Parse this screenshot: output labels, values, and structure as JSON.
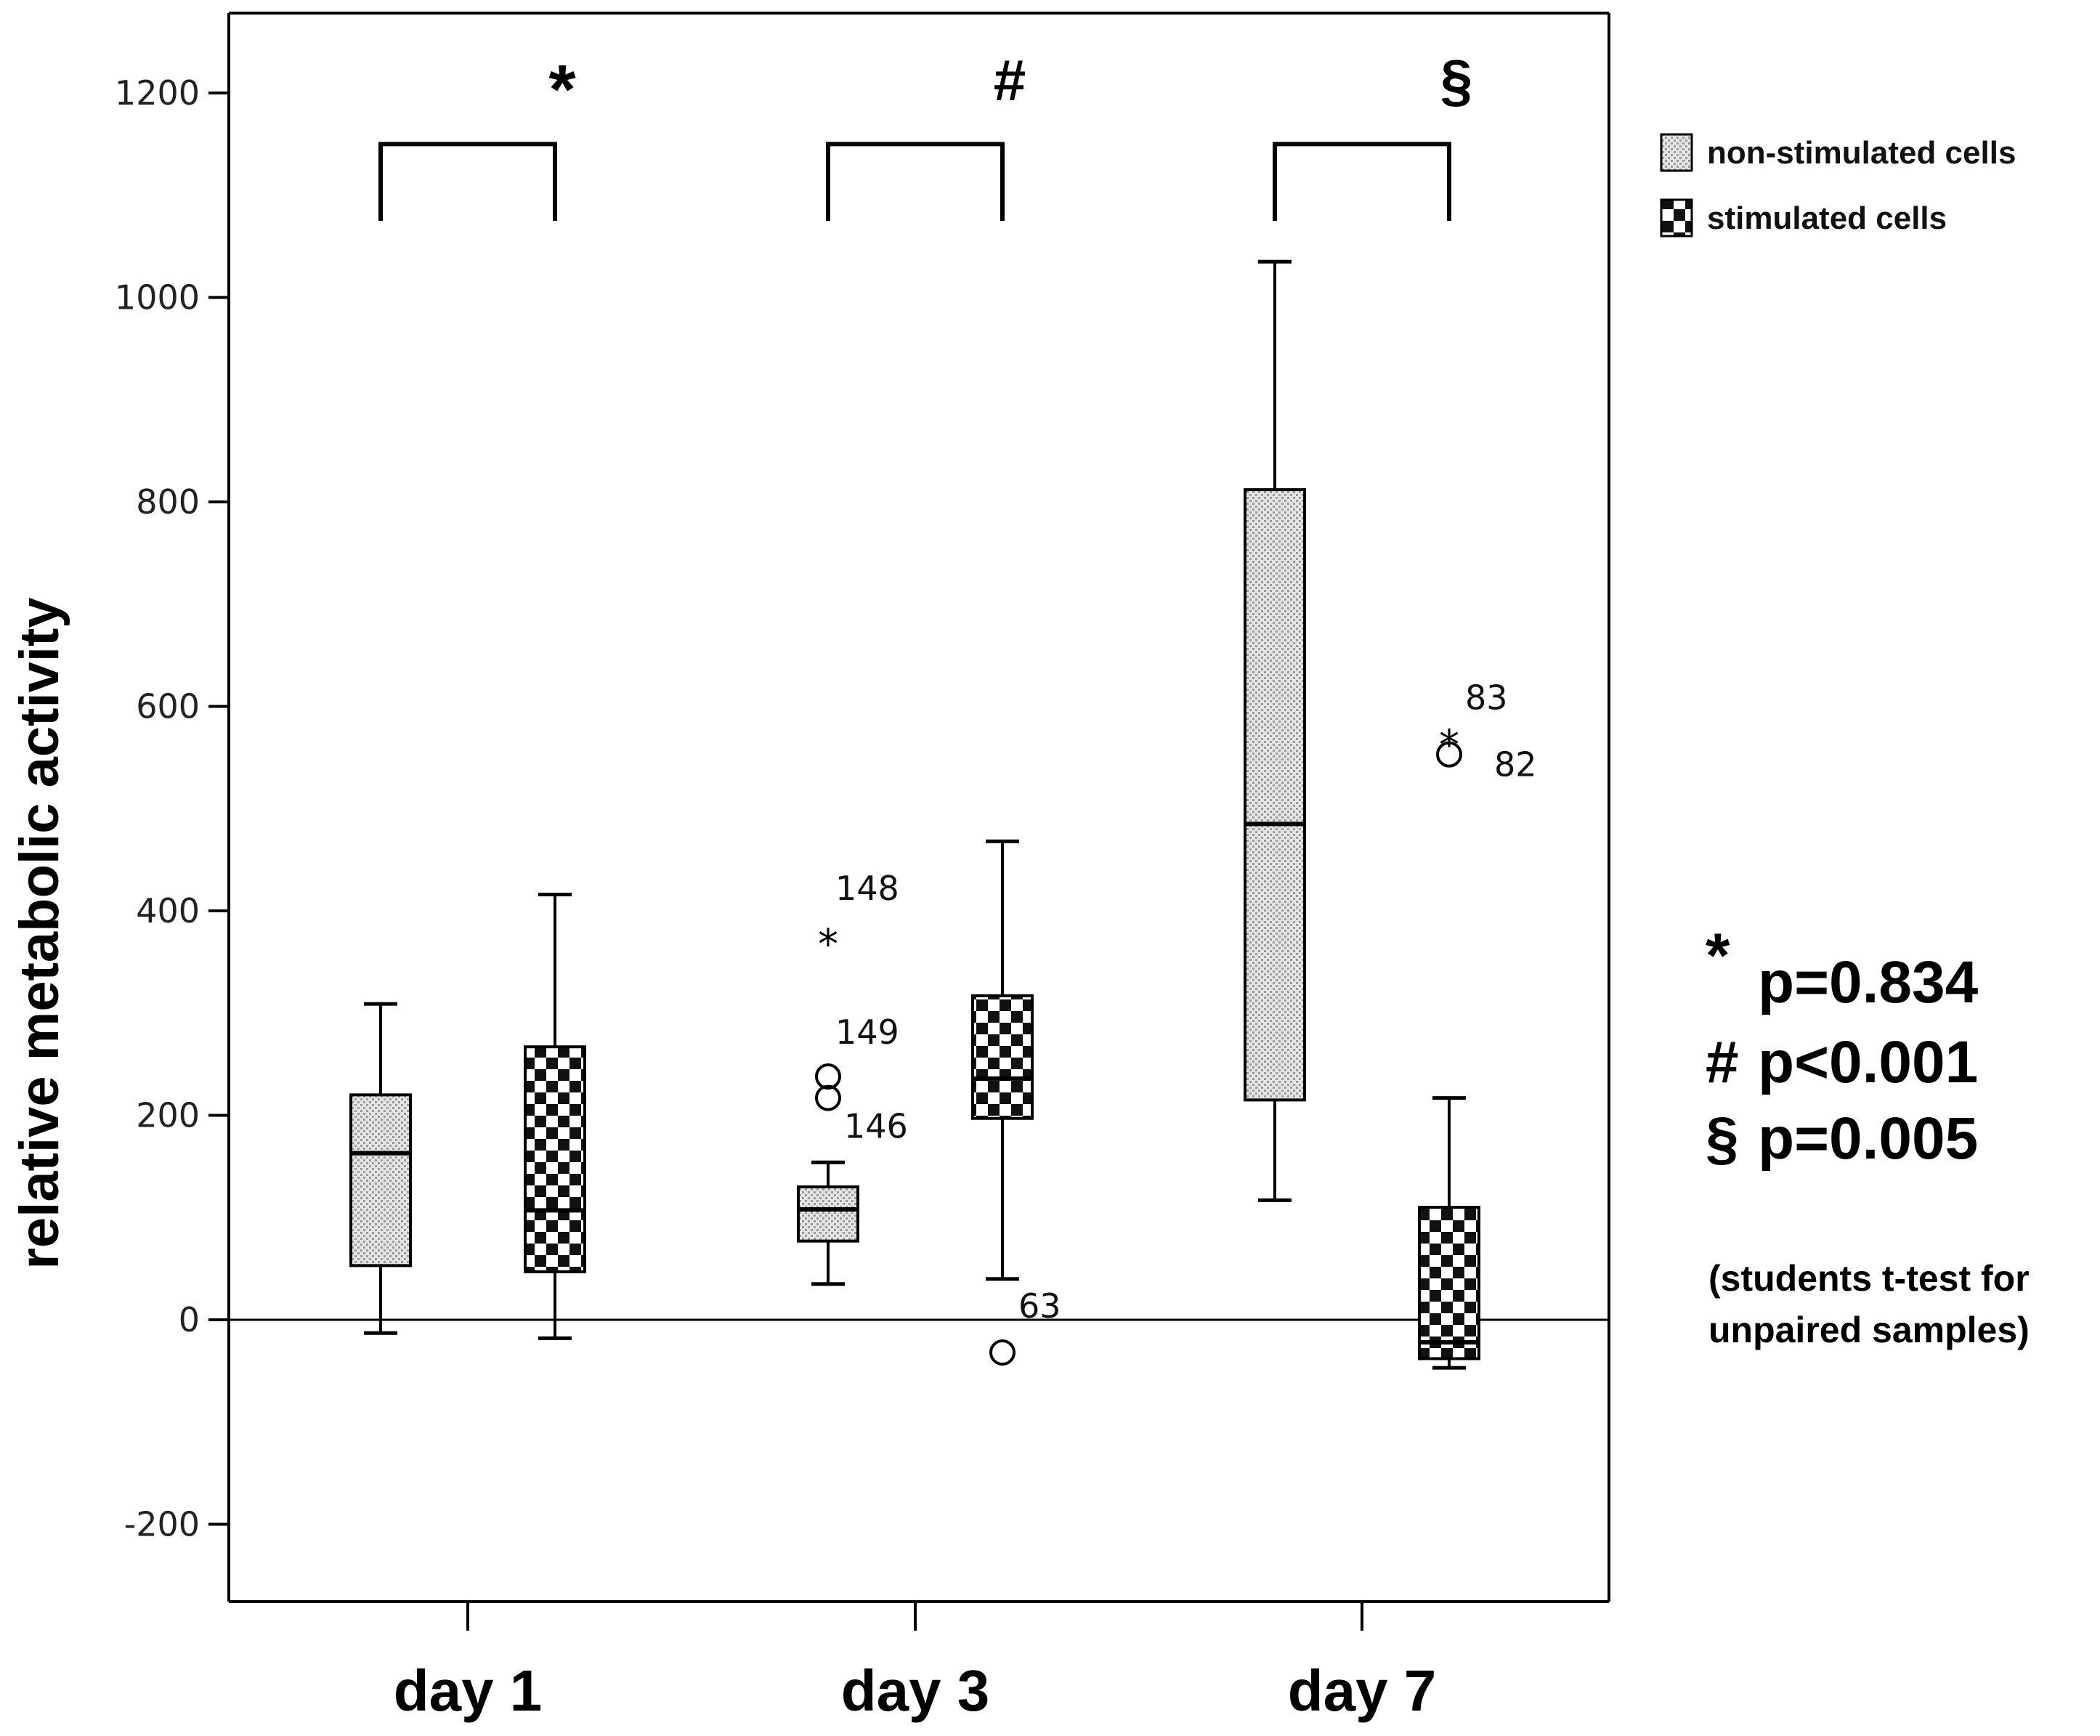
{
  "chart_data": {
    "type": "boxplot",
    "ylabel": "relative metabolic activity",
    "xlabel": "",
    "ylim": [
      -280,
      1280
    ],
    "yticks": [
      -200,
      0,
      200,
      400,
      600,
      800,
      1000,
      1200
    ],
    "ytick_labels": [
      "-200",
      "0",
      "200",
      "400",
      "600",
      "800",
      "1000",
      "1200"
    ],
    "categories": [
      "day 1",
      "day 3",
      "day 7"
    ],
    "legend": {
      "position": "top-right",
      "entries": [
        {
          "series": "non-stimulated",
          "label": "non-stimulated cells",
          "pattern": "dotted-light"
        },
        {
          "series": "stimulated",
          "label": "stimulated cells",
          "pattern": "checker-dark"
        }
      ]
    },
    "series": [
      {
        "name": "non-stimulated",
        "boxes": [
          {
            "category": "day 1",
            "whisker_low": -13,
            "q1": 53,
            "median": 163,
            "q3": 220,
            "whisker_high": 309
          },
          {
            "category": "day 3",
            "whisker_low": 35,
            "q1": 77,
            "median": 108,
            "q3": 130,
            "whisker_high": 154
          },
          {
            "category": "day 7",
            "whisker_low": 117,
            "q1": 215,
            "median": 485,
            "q3": 812,
            "whisker_high": 1035
          }
        ]
      },
      {
        "name": "stimulated",
        "boxes": [
          {
            "category": "day 1",
            "whisker_low": -18,
            "q1": 47,
            "median": 107,
            "q3": 267,
            "whisker_high": 416
          },
          {
            "category": "day 3",
            "whisker_low": 40,
            "q1": 197,
            "median": 236,
            "q3": 317,
            "whisker_high": 468
          },
          {
            "category": "day 7",
            "whisker_low": -47,
            "q1": -38,
            "median": -22,
            "q3": 110,
            "whisker_high": 217
          }
        ]
      }
    ],
    "outliers": [
      {
        "category": "day 3",
        "series": "non-stimulated",
        "value": 375,
        "marker": "star",
        "label": "148"
      },
      {
        "category": "day 3",
        "series": "non-stimulated",
        "value": 238,
        "marker": "circle",
        "label": "149"
      },
      {
        "category": "day 3",
        "series": "non-stimulated",
        "value": 217,
        "marker": "circle",
        "label": "146"
      },
      {
        "category": "day 3",
        "series": "stimulated",
        "value": -32,
        "marker": "circle",
        "label": "63"
      },
      {
        "category": "day 7",
        "series": "stimulated",
        "value": 570,
        "marker": "star",
        "label": "83"
      },
      {
        "category": "day 7",
        "series": "stimulated",
        "value": 553,
        "marker": "circle",
        "label": "82"
      }
    ],
    "significance": [
      {
        "category": "day 1",
        "symbol": "*",
        "bracket_top": 1150,
        "bracket_bottom": 1075
      },
      {
        "category": "day 3",
        "symbol": "#",
        "bracket_top": 1150,
        "bracket_bottom": 1075
      },
      {
        "category": "day 7",
        "symbol": "§",
        "bracket_top": 1150,
        "bracket_bottom": 1075
      }
    ],
    "reference_line": 0,
    "stats": {
      "lines": [
        {
          "symbol": "*",
          "text": "p=0.834"
        },
        {
          "symbol": "#",
          "text": "p<0.001"
        },
        {
          "symbol": "§",
          "text": "p=0.005"
        }
      ],
      "note": [
        "(students t-test for",
        "unpaired samples)"
      ]
    }
  }
}
